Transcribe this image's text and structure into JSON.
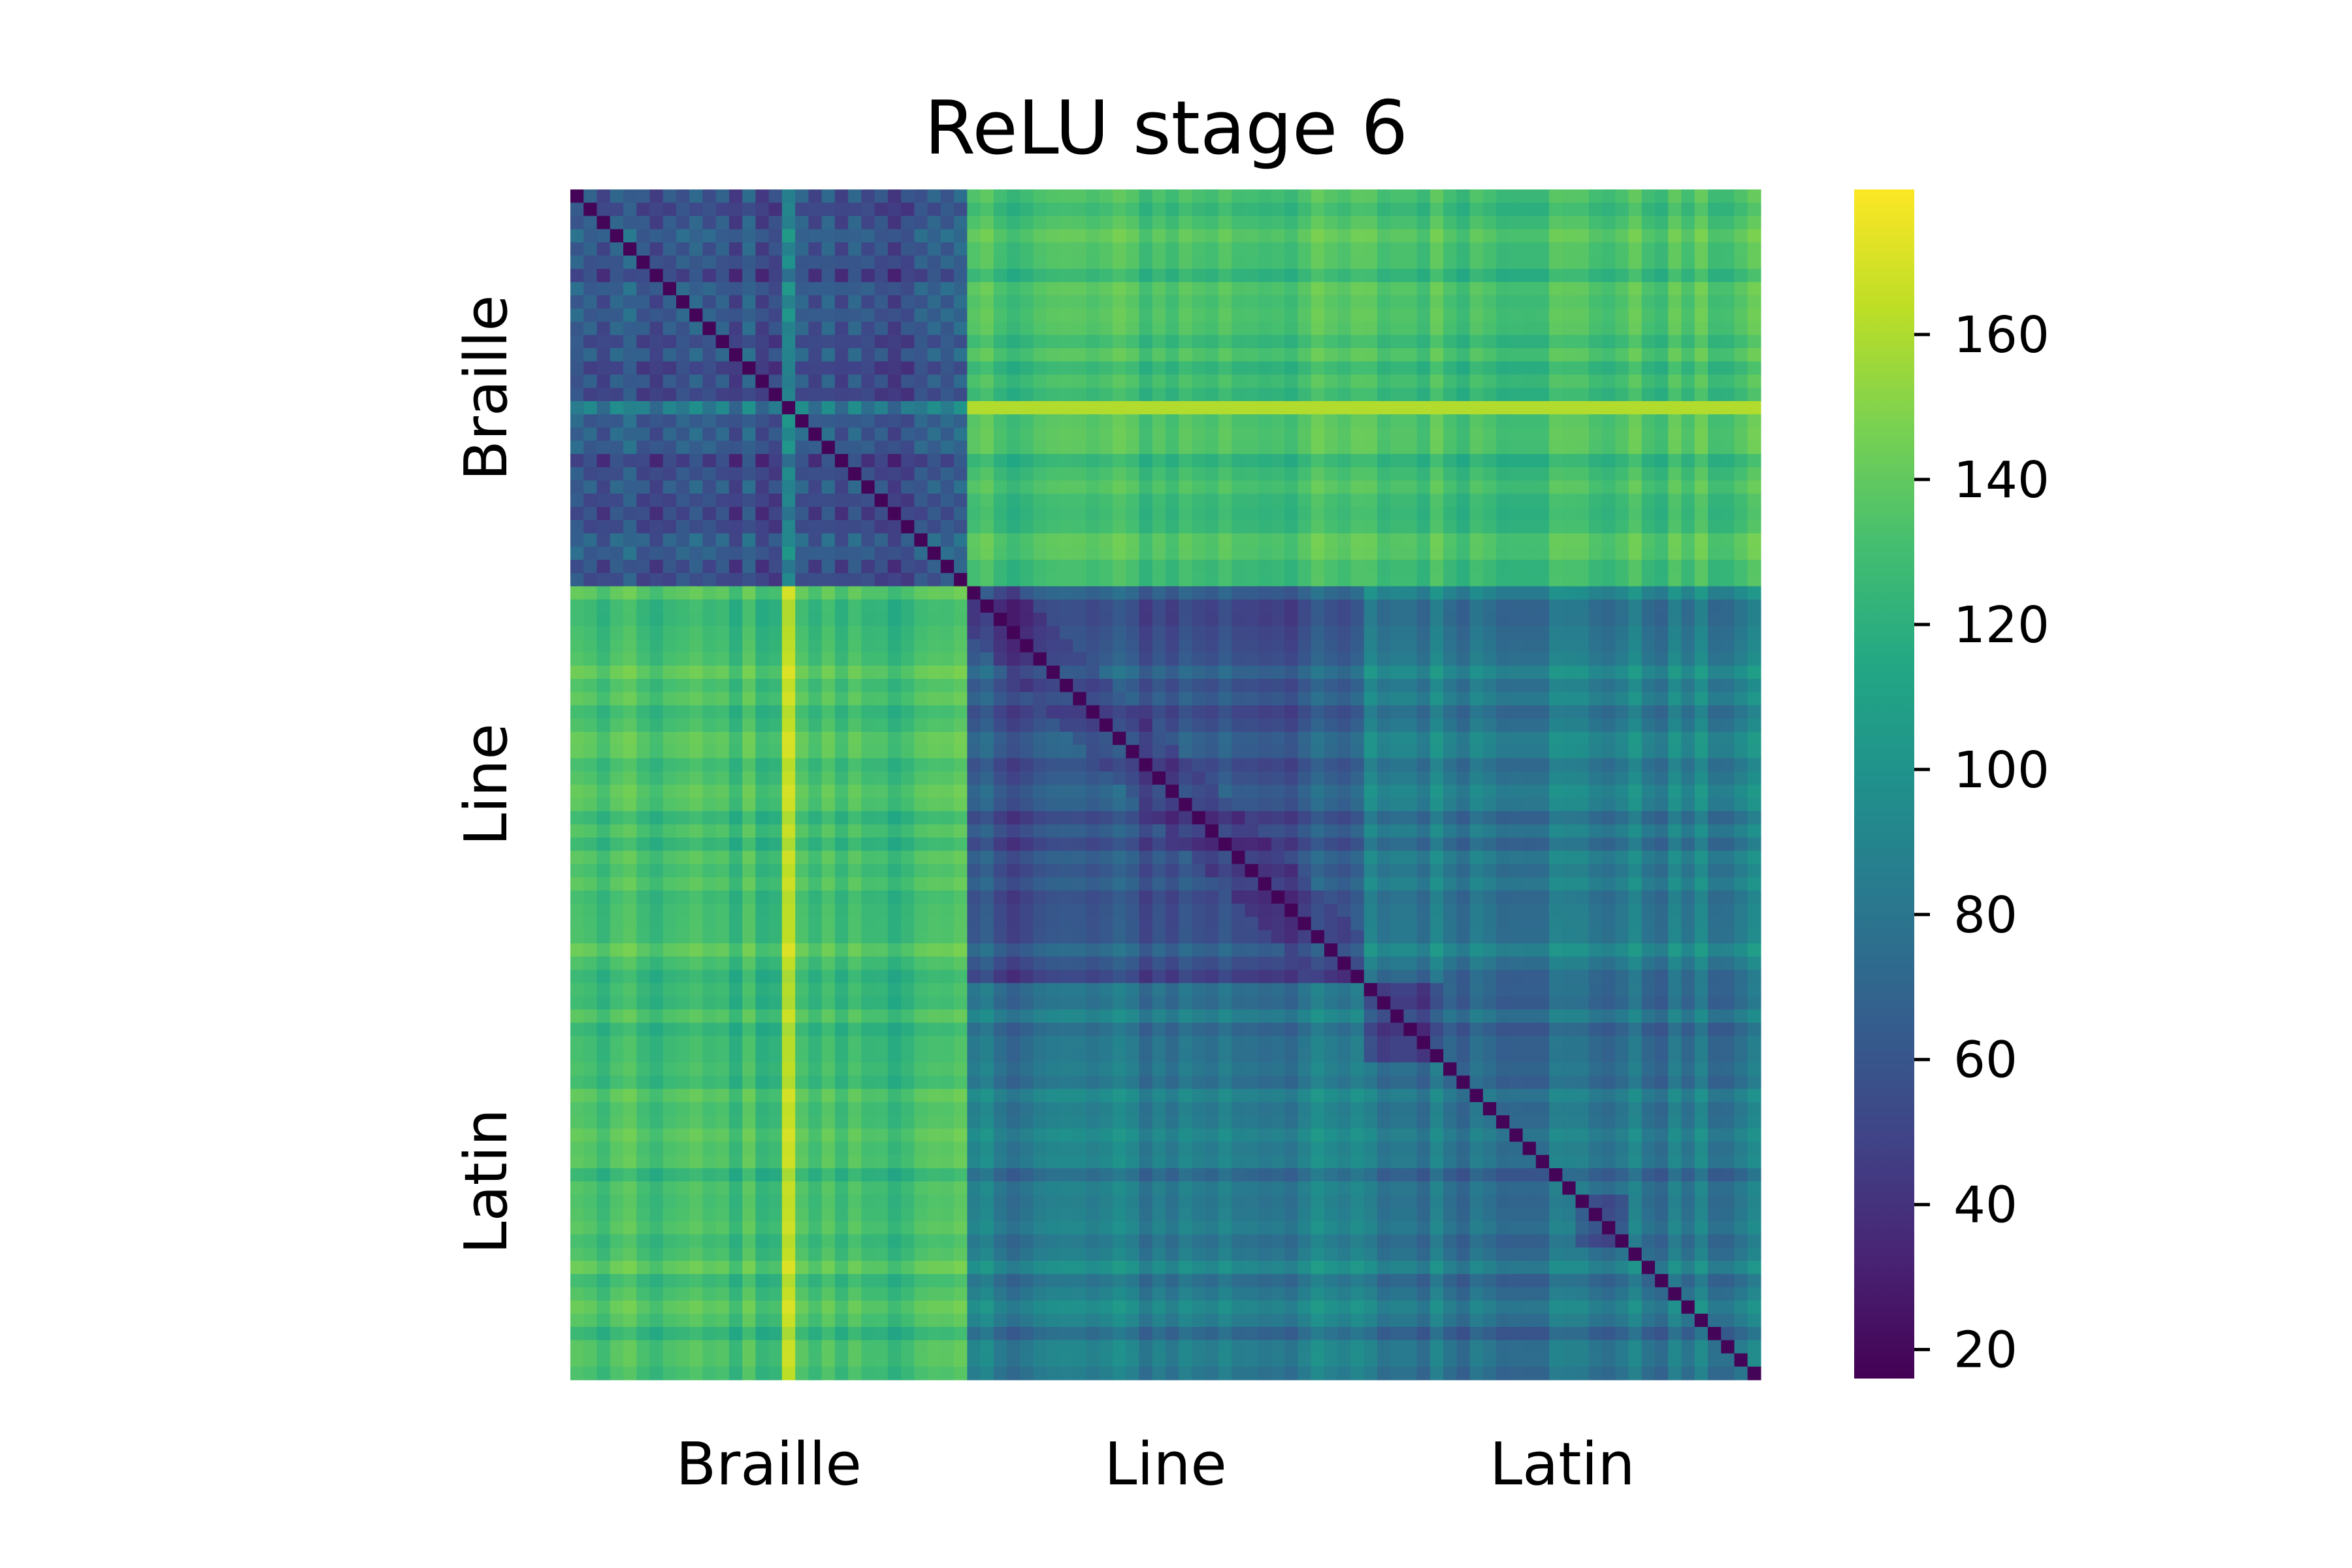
{
  "chart_data": {
    "type": "heatmap",
    "title": "ReLU stage 6",
    "matrix_size": 90,
    "groups": [
      {
        "name": "Braille",
        "count": 30
      },
      {
        "name": "Line",
        "count": 30
      },
      {
        "name": "Latin",
        "count": 30
      }
    ],
    "x_tick_labels": [
      "Braille",
      "Line",
      "Latin"
    ],
    "y_tick_labels": [
      "Braille",
      "Line",
      "Latin"
    ],
    "colormap": "viridis",
    "value_range": [
      16,
      180
    ],
    "colorbar_ticks": [
      20,
      40,
      60,
      80,
      100,
      120,
      140,
      160
    ],
    "diagonal_value": 18,
    "block_means": [
      [
        55,
        130,
        130
      ],
      [
        130,
        60,
        85
      ],
      [
        130,
        85,
        80
      ]
    ],
    "notable_features": {
      "braille_bright_row_index": 16,
      "braille_bright_row_value": 165,
      "braille_column_peak_index": 16,
      "latin_subblocks": "darker clusters near Line/Latin boundary"
    }
  }
}
